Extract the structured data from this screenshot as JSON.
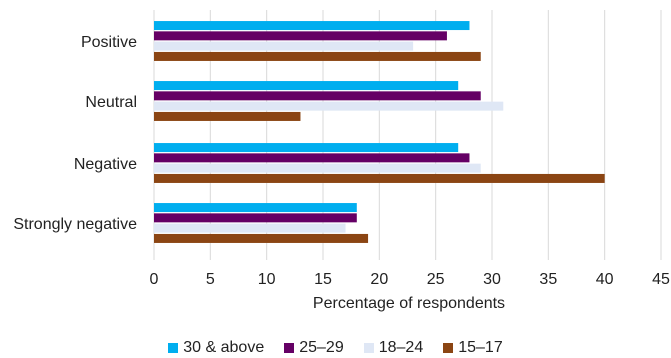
{
  "chart_data": {
    "type": "bar",
    "orientation": "horizontal",
    "categories": [
      "Positive",
      "Neutral",
      "Negative",
      "Strongly negative"
    ],
    "series": [
      {
        "name": "30 & above",
        "color": "#00AEEF",
        "values": [
          28,
          27,
          27,
          18
        ]
      },
      {
        "name": "25–29",
        "color": "#650065",
        "values": [
          26,
          29,
          28,
          18
        ]
      },
      {
        "name": "18–24",
        "color": "#DFE7F5",
        "values": [
          23,
          31,
          29,
          17
        ]
      },
      {
        "name": "15–17",
        "color": "#8B4513",
        "values": [
          29,
          13,
          40,
          19
        ]
      }
    ],
    "xlabel": "Percentage of respondents",
    "xlim": [
      0,
      45
    ],
    "xticks": [
      0,
      5,
      10,
      15,
      20,
      25,
      30,
      35,
      40,
      45
    ],
    "grid": "vertical",
    "legend_position": "bottom"
  }
}
